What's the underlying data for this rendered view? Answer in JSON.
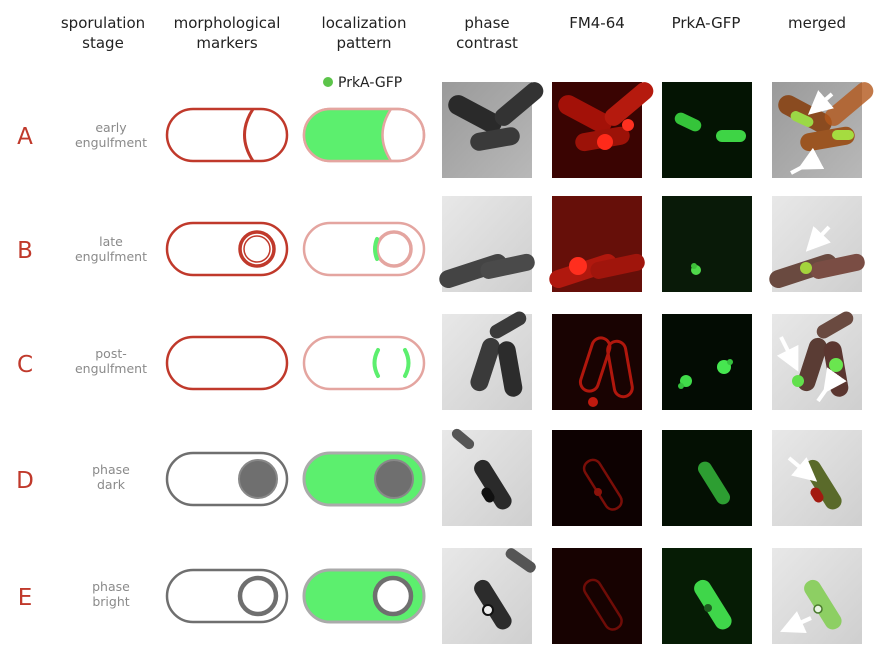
{
  "headers": {
    "stage": [
      "sporulation",
      "stage"
    ],
    "markers": [
      "morphological",
      "markers"
    ],
    "localization": [
      "localization",
      "pattern"
    ],
    "phase": [
      "phase",
      "contrast"
    ],
    "fm": "FM4-64",
    "gfp": "PrkA-GFP",
    "merged": "merged"
  },
  "legend": {
    "label": "PrkA-GFP",
    "color": "#5cc44a"
  },
  "colors": {
    "red": "#c0392b",
    "pink": "#e4a5a0",
    "gray": "#6f6f6f",
    "lightgray": "#aaaaaa",
    "green": "#5cef6e",
    "white_arrow": "#ffffff"
  },
  "rows": [
    {
      "letter": "A",
      "stage": [
        "early",
        "engulfment"
      ]
    },
    {
      "letter": "B",
      "stage": [
        "late",
        "engulfment"
      ]
    },
    {
      "letter": "C",
      "stage": [
        "post-",
        "engulfment"
      ]
    },
    {
      "letter": "D",
      "stage": [
        "phase",
        "dark"
      ]
    },
    {
      "letter": "E",
      "stage": [
        "phase",
        "bright"
      ]
    }
  ]
}
